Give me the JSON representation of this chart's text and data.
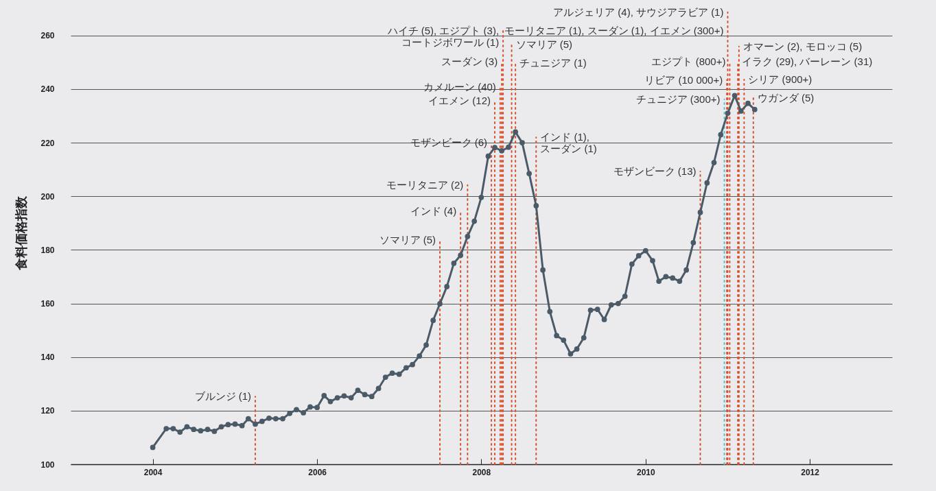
{
  "chart_data": {
    "type": "line",
    "ylabel": "食料価格指数",
    "x": [
      "2004-01",
      "2004-03",
      "2004-04",
      "2004-05",
      "2004-06",
      "2004-07",
      "2004-08",
      "2004-09",
      "2004-10",
      "2004-11",
      "2004-12",
      "2005-01",
      "2005-02",
      "2005-03",
      "2005-04",
      "2005-05",
      "2005-06",
      "2005-07",
      "2005-08",
      "2005-09",
      "2005-10",
      "2005-11",
      "2005-12",
      "2006-01",
      "2006-02",
      "2006-03",
      "2006-04",
      "2006-05",
      "2006-06",
      "2006-07",
      "2006-08",
      "2006-09",
      "2006-10",
      "2006-11",
      "2006-12",
      "2007-01",
      "2007-02",
      "2007-03",
      "2007-04",
      "2007-05",
      "2007-06",
      "2007-07",
      "2007-08",
      "2007-09",
      "2007-10",
      "2007-11",
      "2007-12",
      "2008-01",
      "2008-02",
      "2008-03",
      "2008-04",
      "2008-05",
      "2008-06",
      "2008-07",
      "2008-08",
      "2008-09",
      "2008-10",
      "2008-11",
      "2008-12",
      "2009-01",
      "2009-02",
      "2009-03",
      "2009-04",
      "2009-05",
      "2009-06",
      "2009-07",
      "2009-08",
      "2009-09",
      "2009-10",
      "2009-11",
      "2009-12",
      "2010-01",
      "2010-02",
      "2010-03",
      "2010-04",
      "2010-05",
      "2010-06",
      "2010-07",
      "2010-08",
      "2010-09",
      "2010-10",
      "2010-11",
      "2010-12",
      "2011-01",
      "2011-02",
      "2011-03",
      "2011-04",
      "2011-05"
    ],
    "series": [
      {
        "color": "#4b5a67",
        "values": [
          106.3,
          113.3,
          113.3,
          112,
          114,
          113,
          112.5,
          113,
          112.3,
          114,
          114.8,
          115,
          114.4,
          117,
          115,
          116,
          117.2,
          117,
          117,
          119,
          120.4,
          119.2,
          121.4,
          121.2,
          125.6,
          123.4,
          124.8,
          125.5,
          124.8,
          127.6,
          126,
          125.3,
          128.3,
          132.5,
          134,
          133.6,
          136,
          137.2,
          140.4,
          144.5,
          153.7,
          159.9,
          166.3,
          175,
          178,
          185,
          190.7,
          199.6,
          215,
          218.2,
          217,
          218.3,
          224,
          220,
          208.5,
          196.5,
          172.5,
          157,
          148,
          146.3,
          141.2,
          143,
          147.2,
          157.5,
          157.8,
          154,
          159.5,
          160,
          162.7,
          174.7,
          177.8,
          179.7,
          176,
          168.3,
          170,
          169.5,
          168.3,
          172.5,
          182.7,
          194,
          205,
          212.6,
          223,
          231,
          237.6,
          231.8,
          234.7,
          232.4
        ]
      }
    ],
    "xlim": [
      "2003",
      "2013"
    ],
    "xticks": [
      "2004",
      "2006",
      "2008",
      "2010",
      "2012"
    ],
    "ylim": [
      100,
      273
    ],
    "yticks": [
      100,
      120,
      140,
      160,
      180,
      200,
      220,
      240,
      260
    ],
    "grid": "y",
    "marker": "circle",
    "ref_lines": [
      {
        "axis": "x",
        "value": "2005-04",
        "color": "#d9502b",
        "line_style": "dotted"
      },
      {
        "axis": "x",
        "value": "2007-07",
        "color": "#d9502b",
        "line_style": "dotted"
      },
      {
        "axis": "x",
        "value": "2007-10",
        "color": "#d9502b",
        "line_style": "dotted"
      },
      {
        "axis": "x",
        "value": "2007-11",
        "color": "#d9502b",
        "line_style": "dotted"
      },
      {
        "axis": "x",
        "value": "2008-02-15",
        "color": "#d9502b",
        "line_style": "dotted"
      },
      {
        "axis": "x",
        "value": "2008-03",
        "color": "#d9502b",
        "line_style": "dotted"
      },
      {
        "axis": "x",
        "value": "2008-03-25",
        "color": "#d9502b",
        "line_style": "dotted"
      },
      {
        "axis": "x",
        "value": "2008-04",
        "color": "#d9502b",
        "line_style": "dotted"
      },
      {
        "axis": "x",
        "value": "2008-04-07",
        "color": "#d9502b",
        "line_style": "dotted"
      },
      {
        "axis": "x",
        "value": "2008-05-15",
        "color": "#d9502b",
        "line_style": "dotted"
      },
      {
        "axis": "x",
        "value": "2008-06",
        "color": "#d9502b",
        "line_style": "dotted"
      },
      {
        "axis": "x",
        "value": "2008-09",
        "color": "#d9502b",
        "line_style": "dotted"
      },
      {
        "axis": "x",
        "value": "2010-09",
        "color": "#d9502b",
        "line_style": "dotted"
      },
      {
        "axis": "x",
        "value": "2010-12-17",
        "color": "#4fc3c3",
        "line_style": "dotted"
      },
      {
        "axis": "x",
        "value": "2010-12-28",
        "color": "#d9502b",
        "line_style": "dotted"
      },
      {
        "axis": "x",
        "value": "2011-01",
        "color": "#d9502b",
        "line_style": "dotted"
      },
      {
        "axis": "x",
        "value": "2011-01-10",
        "color": "#d9502b",
        "line_style": "dotted"
      },
      {
        "axis": "x",
        "value": "2011-02-15",
        "color": "#d9502b",
        "line_style": "dotted"
      },
      {
        "axis": "x",
        "value": "2011-02-20",
        "color": "#d9502b",
        "line_style": "dotted"
      },
      {
        "axis": "x",
        "value": "2011-03-15",
        "color": "#d9502b",
        "line_style": "dotted"
      },
      {
        "axis": "x",
        "value": "2011-04-25",
        "color": "#d9502b",
        "line_style": "dotted"
      }
    ],
    "annotations": [
      {
        "text": "ブルンジ (1)",
        "x": "2005-04",
        "y": 125.3
      },
      {
        "text": "ソマリア (5)",
        "x": "2007-07",
        "y": 183.7
      },
      {
        "text": "インド (4)",
        "x": "2007-10",
        "y": 194.5
      },
      {
        "text": "モーリタニア (2)",
        "x": "2007-11",
        "y": 204.2
      },
      {
        "text": "モザンビーク (6)",
        "x": "2008-02-15",
        "y": 220
      },
      {
        "text": "イエメン (12)",
        "x": "2008-03",
        "y": 235.7
      },
      {
        "text": "カメルーン (40)",
        "x": "2008-03-25",
        "y": 240.8
      },
      {
        "text": "スーダン (3)",
        "x": "2008-04",
        "y": 250.3
      },
      {
        "text": "ハイチ (5), エジプト (3),\nコートジボワール (1)",
        "x": "2008-04-07",
        "y": 261.8
      },
      {
        "text": "ソマリア (5)",
        "x": "2008-05-15",
        "y": 256.7
      },
      {
        "text": "チュニジア (1)",
        "x": "2008-06",
        "y": 249.8
      },
      {
        "text": "インド (1),\nスーダン (1)",
        "x": "2008-09",
        "y": 222
      },
      {
        "text": "モザンビーク (13)",
        "x": "2010-09",
        "y": 209.3
      },
      {
        "text": "チュニジア (300+)",
        "x": "2010-12-17",
        "y": 236.2
      },
      {
        "text": "リビア (10 000+)",
        "x": "2010-12-28",
        "y": 243.4
      },
      {
        "text": "エジプト (800+)",
        "x": "2011-01-10",
        "y": 250.3
      },
      {
        "text": "イラク (29), バーレーン (31)",
        "x": "2011-02-15",
        "y": 250.3
      },
      {
        "text": "オマーン (2), モロッコ (5)",
        "x": "2011-02-20",
        "y": 255.9
      },
      {
        "text": "シリア (900+)",
        "x": "2011-03-15",
        "y": 243.6
      },
      {
        "text": "ウガンダ (5)",
        "x": "2011-04-25",
        "y": 236.7
      },
      {
        "text": "モーリタニア (1), スーダン (1), イエメン (300+)",
        "x": "2011-01",
        "y": 261.8
      },
      {
        "text": "アルジェリア (4), サウジアラビア (1)",
        "x": "2011-01",
        "y": 268.7
      }
    ]
  }
}
